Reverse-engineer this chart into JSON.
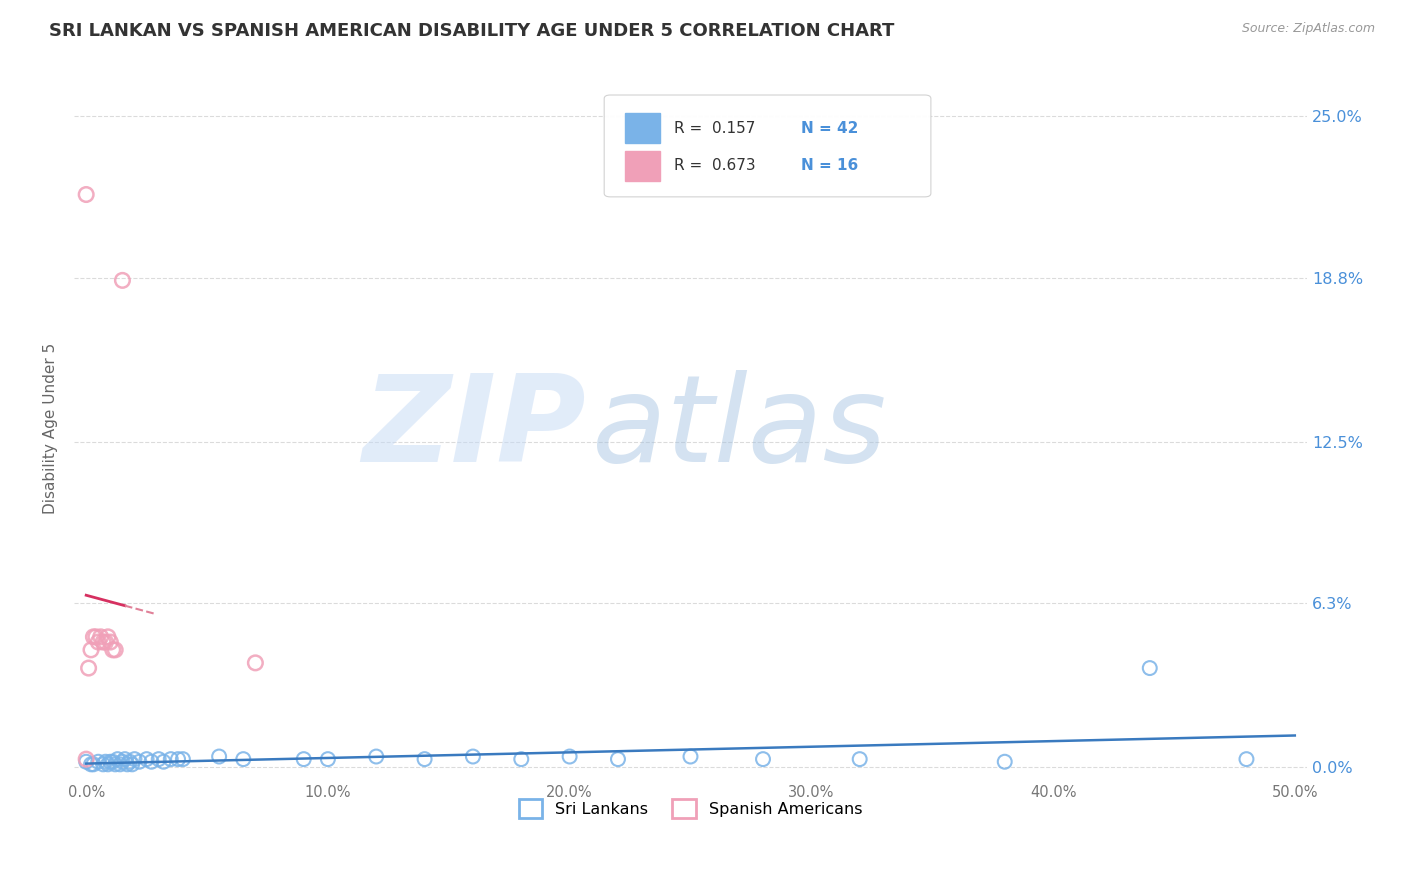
{
  "title": "SRI LANKAN VS SPANISH AMERICAN DISABILITY AGE UNDER 5 CORRELATION CHART",
  "source": "Source: ZipAtlas.com",
  "ylabel": "Disability Age Under 5",
  "xlim": [
    -0.005,
    0.505
  ],
  "ylim": [
    -0.005,
    0.265
  ],
  "xticks": [
    0.0,
    0.1,
    0.2,
    0.3,
    0.4,
    0.5
  ],
  "xtick_labels": [
    "0.0%",
    "10.0%",
    "20.0%",
    "30.0%",
    "40.0%",
    "50.0%"
  ],
  "yticks": [
    0.0,
    0.063,
    0.125,
    0.188,
    0.25
  ],
  "ytick_labels_right": [
    "0.0%",
    "6.3%",
    "12.5%",
    "18.8%",
    "25.0%"
  ],
  "sri_lankan_color": "#7ab3e8",
  "spanish_american_color": "#f0a0b8",
  "sri_trend_color": "#3a7abf",
  "spa_trend_color": "#d63060",
  "spa_dash_color": "#e08098",
  "R_sri": 0.157,
  "N_sri": 42,
  "R_spa": 0.673,
  "N_spa": 16,
  "legend_entries": [
    "Sri Lankans",
    "Spanish Americans"
  ],
  "watermark_zip": "ZIP",
  "watermark_atlas": "atlas",
  "background_color": "#ffffff",
  "grid_color": "#cccccc",
  "title_color": "#333333",
  "tick_color_y": "#4a90d9",
  "tick_color_x": "#777777",
  "sri_x": [
    0.0,
    0.002,
    0.003,
    0.005,
    0.007,
    0.008,
    0.009,
    0.01,
    0.011,
    0.012,
    0.013,
    0.014,
    0.015,
    0.016,
    0.017,
    0.018,
    0.019,
    0.02,
    0.022,
    0.025,
    0.027,
    0.03,
    0.032,
    0.035,
    0.038,
    0.04,
    0.055,
    0.065,
    0.09,
    0.1,
    0.12,
    0.14,
    0.16,
    0.18,
    0.2,
    0.22,
    0.25,
    0.28,
    0.32,
    0.38,
    0.44,
    0.48
  ],
  "sri_y": [
    0.002,
    0.001,
    0.001,
    0.002,
    0.001,
    0.002,
    0.001,
    0.002,
    0.002,
    0.001,
    0.003,
    0.001,
    0.002,
    0.003,
    0.001,
    0.002,
    0.001,
    0.003,
    0.002,
    0.003,
    0.002,
    0.003,
    0.002,
    0.003,
    0.003,
    0.003,
    0.004,
    0.003,
    0.003,
    0.003,
    0.004,
    0.003,
    0.004,
    0.003,
    0.004,
    0.003,
    0.004,
    0.003,
    0.003,
    0.002,
    0.038,
    0.003
  ],
  "spa_x": [
    0.0,
    0.001,
    0.002,
    0.003,
    0.004,
    0.005,
    0.006,
    0.007,
    0.008,
    0.009,
    0.01,
    0.011,
    0.012,
    0.07,
    0.0,
    0.015
  ],
  "spa_y": [
    0.003,
    0.038,
    0.045,
    0.05,
    0.05,
    0.048,
    0.05,
    0.048,
    0.048,
    0.05,
    0.048,
    0.045,
    0.045,
    0.04,
    0.22,
    0.187
  ]
}
